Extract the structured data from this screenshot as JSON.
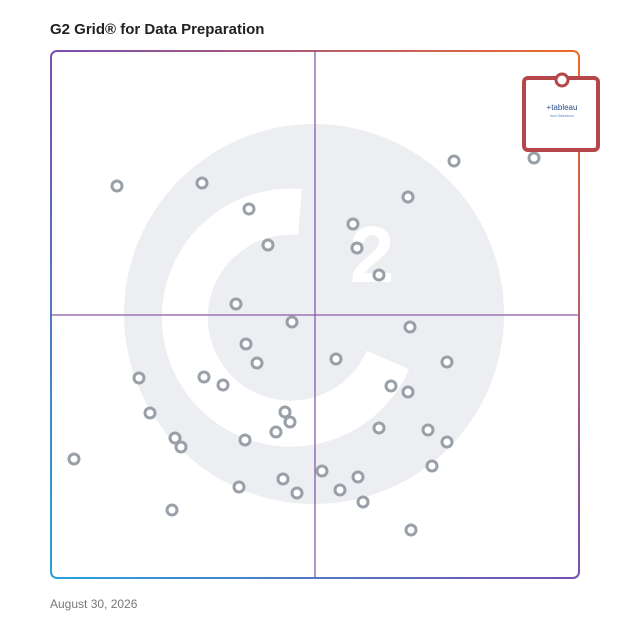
{
  "chart_data": {
    "type": "scatter",
    "title": "G2 Grid® for Data Preparation",
    "date": "August 30, 2026",
    "xlim": [
      0,
      528
    ],
    "ylim": [
      0,
      527
    ],
    "series": [
      {
        "color": "#9aa0a8",
        "x": [
          66,
          151,
          198,
          217,
          403,
          483,
          357,
          302,
          306,
          328,
          185,
          241,
          359,
          195,
          206,
          285,
          396,
          88,
          153,
          172,
          340,
          357,
          99,
          234,
          239,
          225,
          124,
          130,
          194,
          328,
          377,
          396,
          23,
          381,
          271,
          307,
          232,
          188,
          246,
          289,
          312,
          121,
          360
        ],
        "y": [
          392,
          395,
          369,
          333,
          417,
          420,
          381,
          354,
          330,
          303,
          274,
          256,
          251,
          234,
          215,
          219,
          216,
          200,
          201,
          193,
          192,
          186,
          165,
          166,
          156,
          146,
          140,
          131,
          138,
          150,
          148,
          136,
          119,
          112,
          107,
          101,
          99,
          91,
          85,
          88,
          76,
          68,
          48
        ]
      },
      {
        "name": "+tableau",
        "subtitle": "from Salesforce",
        "color": "#b5474a",
        "highlight": true,
        "x": [
          511
        ],
        "y": [
          498
        ]
      }
    ]
  }
}
